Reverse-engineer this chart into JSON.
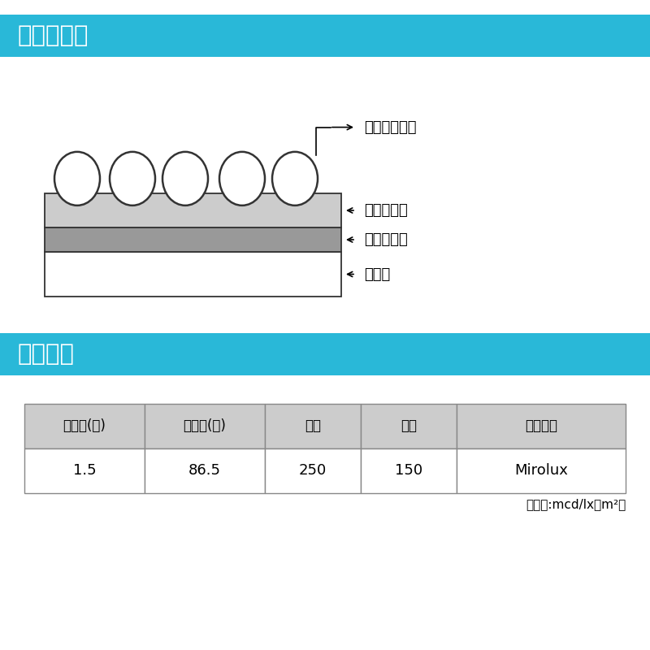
{
  "bg_color": "#ffffff",
  "cyan_color": "#29b8d8",
  "header1_text": "断面構造図",
  "header2_text": "反射性能",
  "label_glass": "ガラスビーズ",
  "label_binder": "バインダー",
  "label_tape": "テープ基材",
  "label_adhesive": "接着剤",
  "table_headers": [
    "観測角(度)",
    "入射角(度)",
    "白色",
    "黄色",
    "測定器名"
  ],
  "table_row": [
    "1.5",
    "86.5",
    "250",
    "150",
    "Mirolux"
  ],
  "unit_text": "（単位:mcd/lx・m²）",
  "layer_light_gray": "#cccccc",
  "layer_dark_gray": "#999999",
  "layer_white": "#ffffff",
  "outline_color": "#333333",
  "table_header_bg": "#cccccc",
  "table_border": "#888888",
  "cyan_color_header": "#29b8d8"
}
